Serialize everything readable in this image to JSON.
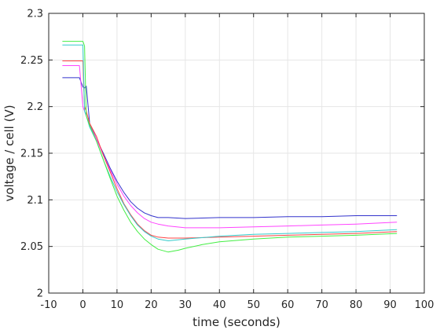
{
  "chart_data": {
    "type": "line",
    "title": "",
    "xlabel": "time (seconds)",
    "ylabel": "voltage / cell (V)",
    "xlim": [
      -10,
      100
    ],
    "ylim": [
      2.0,
      2.3
    ],
    "xticks": [
      -10,
      0,
      10,
      20,
      30,
      40,
      50,
      60,
      70,
      80,
      90,
      100
    ],
    "xtick_labels": [
      "-10",
      "0",
      "10",
      "20",
      "30",
      "40",
      "50",
      "60",
      "70",
      "80",
      "90",
      "100"
    ],
    "yticks": [
      2.0,
      2.05,
      2.1,
      2.15,
      2.2,
      2.25,
      2.3
    ],
    "ytick_labels": [
      "2",
      "2.05",
      "2.1",
      "2.15",
      "2.2",
      "2.25",
      "2.3"
    ],
    "grid": true,
    "legend": "none",
    "series": [
      {
        "color": "#3333cc",
        "x": [
          -6,
          -1,
          0,
          0.5,
          1,
          2,
          4,
          6,
          8,
          10,
          12,
          14,
          16,
          18,
          20,
          22,
          25,
          30,
          40,
          50,
          60,
          70,
          80,
          92
        ],
        "y": [
          2.231,
          2.231,
          2.221,
          2.22,
          2.222,
          2.182,
          2.165,
          2.15,
          2.134,
          2.12,
          2.108,
          2.098,
          2.091,
          2.086,
          2.083,
          2.081,
          2.081,
          2.08,
          2.081,
          2.081,
          2.082,
          2.082,
          2.083,
          2.083
        ]
      },
      {
        "color": "#ff44ff",
        "x": [
          -6,
          -1,
          0,
          1,
          2,
          4,
          6,
          8,
          10,
          12,
          14,
          16,
          18,
          20,
          22,
          25,
          30,
          40,
          50,
          60,
          70,
          80,
          92
        ],
        "y": [
          2.244,
          2.244,
          2.2,
          2.19,
          2.18,
          2.165,
          2.148,
          2.132,
          2.117,
          2.104,
          2.094,
          2.086,
          2.08,
          2.076,
          2.074,
          2.072,
          2.07,
          2.07,
          2.071,
          2.072,
          2.073,
          2.074,
          2.076
        ]
      },
      {
        "color": "#ff4444",
        "x": [
          -6,
          0,
          0.5,
          1,
          2,
          4,
          6,
          8,
          10,
          12,
          14,
          16,
          18,
          20,
          22,
          25,
          30,
          40,
          50,
          60,
          70,
          80,
          92
        ],
        "y": [
          2.249,
          2.249,
          2.2,
          2.195,
          2.182,
          2.168,
          2.148,
          2.13,
          2.112,
          2.096,
          2.084,
          2.074,
          2.067,
          2.062,
          2.06,
          2.059,
          2.059,
          2.06,
          2.061,
          2.062,
          2.063,
          2.064,
          2.066
        ]
      },
      {
        "color": "#33cccc",
        "x": [
          -6,
          0,
          0.5,
          1,
          2,
          4,
          6,
          8,
          10,
          12,
          14,
          16,
          18,
          20,
          22,
          25,
          30,
          40,
          50,
          60,
          70,
          80,
          92
        ],
        "y": [
          2.266,
          2.266,
          2.195,
          2.19,
          2.178,
          2.163,
          2.143,
          2.125,
          2.109,
          2.095,
          2.083,
          2.073,
          2.066,
          2.061,
          2.058,
          2.056,
          2.058,
          2.061,
          2.063,
          2.064,
          2.065,
          2.066,
          2.068
        ]
      },
      {
        "color": "#44ee44",
        "x": [
          -6,
          0,
          0.5,
          1,
          2,
          4,
          6,
          8,
          10,
          12,
          14,
          16,
          18,
          20,
          22,
          25,
          28,
          30,
          35,
          40,
          50,
          60,
          70,
          80,
          92
        ],
        "y": [
          2.27,
          2.27,
          2.265,
          2.19,
          2.18,
          2.163,
          2.143,
          2.123,
          2.104,
          2.089,
          2.076,
          2.066,
          2.058,
          2.052,
          2.047,
          2.044,
          2.046,
          2.048,
          2.052,
          2.055,
          2.058,
          2.06,
          2.061,
          2.062,
          2.064
        ]
      }
    ]
  }
}
